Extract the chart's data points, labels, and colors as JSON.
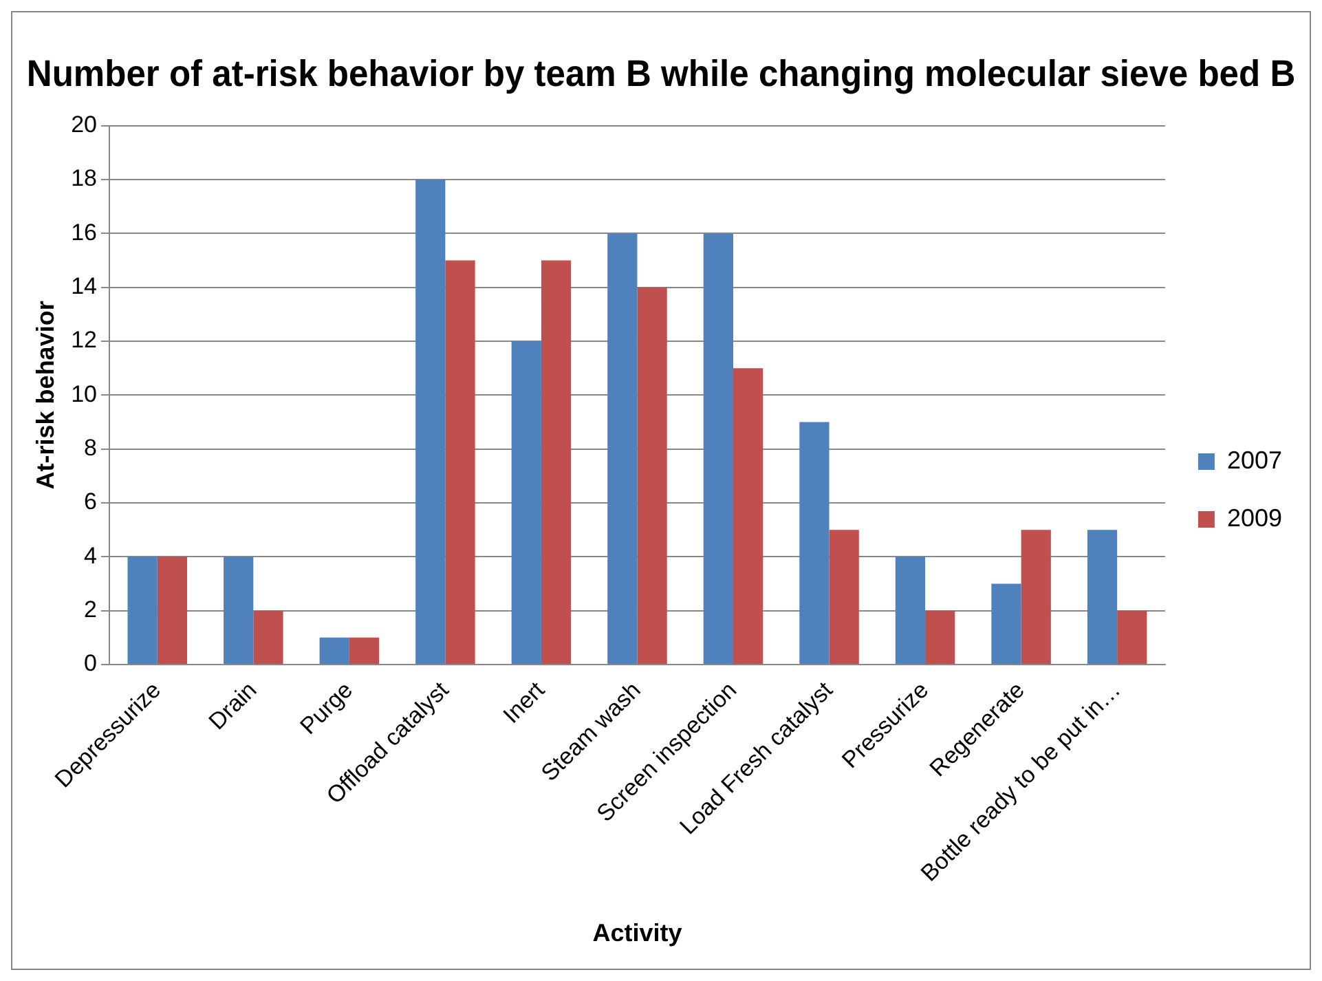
{
  "chart_data": {
    "type": "bar",
    "title": "Number of at-risk behavior by team B while changing molecular sieve bed B",
    "xlabel": "Activity",
    "ylabel": "At-risk behavior",
    "categories": [
      "Depressurize",
      "Drain",
      "Purge",
      "Offload catalyst",
      "Inert",
      "Steam wash",
      "Screen inspection",
      "Load Fresh catalyst",
      "Pressurize",
      "Regenerate",
      "Bottle ready to be put in…"
    ],
    "series": [
      {
        "name": "2007",
        "color": "#4f81bd",
        "values": [
          4,
          4,
          1,
          18,
          12,
          16,
          16,
          9,
          4,
          3,
          5
        ]
      },
      {
        "name": "2009",
        "color": "#c0504d",
        "values": [
          4,
          2,
          1,
          15,
          15,
          14,
          11,
          5,
          2,
          5,
          2
        ]
      }
    ],
    "ylim": [
      0,
      20
    ],
    "yticks": [
      0,
      2,
      4,
      6,
      8,
      10,
      12,
      14,
      16,
      18,
      20
    ],
    "grid": "y",
    "legend": "right"
  }
}
